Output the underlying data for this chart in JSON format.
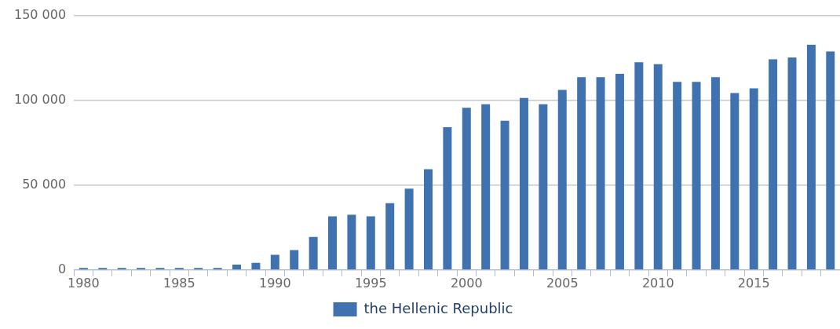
{
  "chart_data": {
    "type": "bar",
    "categories": [
      "1980",
      null,
      null,
      null,
      null,
      "1985",
      null,
      null,
      null,
      null,
      "1990",
      null,
      null,
      null,
      null,
      "1995",
      null,
      null,
      null,
      null,
      "2000",
      null,
      null,
      null,
      null,
      "2005",
      null,
      null,
      null,
      null,
      "2010",
      null,
      null,
      null,
      null,
      "2015",
      null,
      null,
      null,
      null
    ],
    "series": [
      {
        "name": "the Hellenic Republic",
        "color": "#3f72af",
        "values": [
          1200,
          1200,
          1200,
          1200,
          1200,
          1200,
          1200,
          1200,
          3100,
          4200,
          8900,
          11700,
          19400,
          31600,
          32500,
          31600,
          39300,
          47900,
          59400,
          84100,
          95600,
          97600,
          87900,
          101400,
          97600,
          106100,
          113600,
          113600,
          115600,
          122400,
          121300,
          110800,
          110800,
          113600,
          104200,
          107000,
          124100,
          125200,
          132700,
          128800
        ]
      }
    ],
    "ylim": [
      0,
      150000
    ],
    "yticks": [
      0,
      {
        "value": 50000,
        "label": "50 000"
      },
      {
        "value": 100000,
        "label": "100 000"
      },
      {
        "value": 150000,
        "label": "150 000"
      }
    ],
    "grid": "y",
    "legend": "bottom"
  }
}
